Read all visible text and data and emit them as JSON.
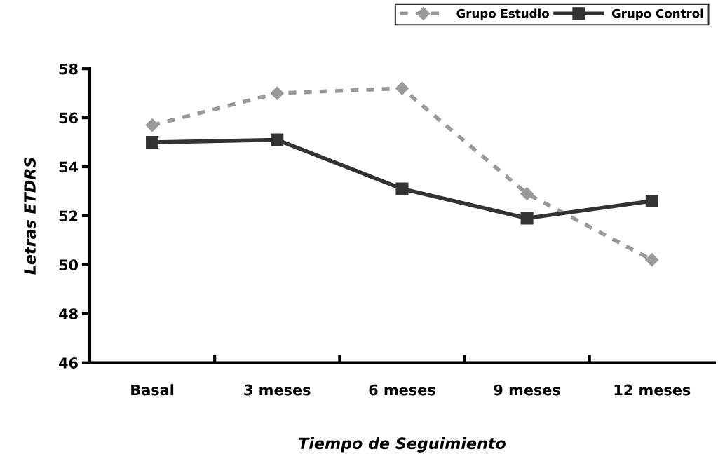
{
  "chart_data": {
    "type": "line",
    "xlabel": "Tiempo de Seguimiento",
    "ylabel": "Letras ETDRS",
    "categories": [
      "Basal",
      "3 meses",
      "6 meses",
      "9 meses",
      "12 meses"
    ],
    "series": [
      {
        "name": "Grupo Estudio",
        "color": "#999999",
        "marker": "diamond",
        "line_style": "dashed",
        "values": [
          55.7,
          57.0,
          57.2,
          52.9,
          50.2
        ]
      },
      {
        "name": "Grupo Control",
        "color": "#333333",
        "marker": "square",
        "line_style": "solid",
        "values": [
          55.0,
          55.1,
          53.1,
          51.9,
          52.6
        ]
      }
    ],
    "ylim": [
      46,
      58
    ],
    "yticks": [
      46,
      48,
      50,
      52,
      54,
      56,
      58
    ],
    "grid": false,
    "legend": "top right"
  }
}
